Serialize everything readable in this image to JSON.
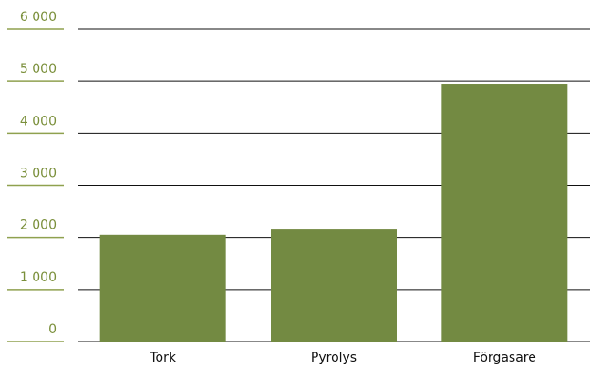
{
  "chart_data": {
    "type": "bar",
    "categories": [
      "Tork",
      "Pyrolys",
      "Förgasare"
    ],
    "values": [
      2050,
      2150,
      4950
    ],
    "color": "#738a42",
    "ylim": [
      0,
      6000
    ],
    "yticks": [
      0,
      {
        "value": 1000,
        "label": "1 000"
      },
      {
        "value": 2000,
        "label": "2 000"
      },
      {
        "value": 3000,
        "label": "3 000"
      },
      {
        "value": 4000,
        "label": "4 000"
      },
      {
        "value": 5000,
        "label": "5 000"
      },
      {
        "value": 6000,
        "label": "6 000"
      }
    ],
    "grid": true
  }
}
